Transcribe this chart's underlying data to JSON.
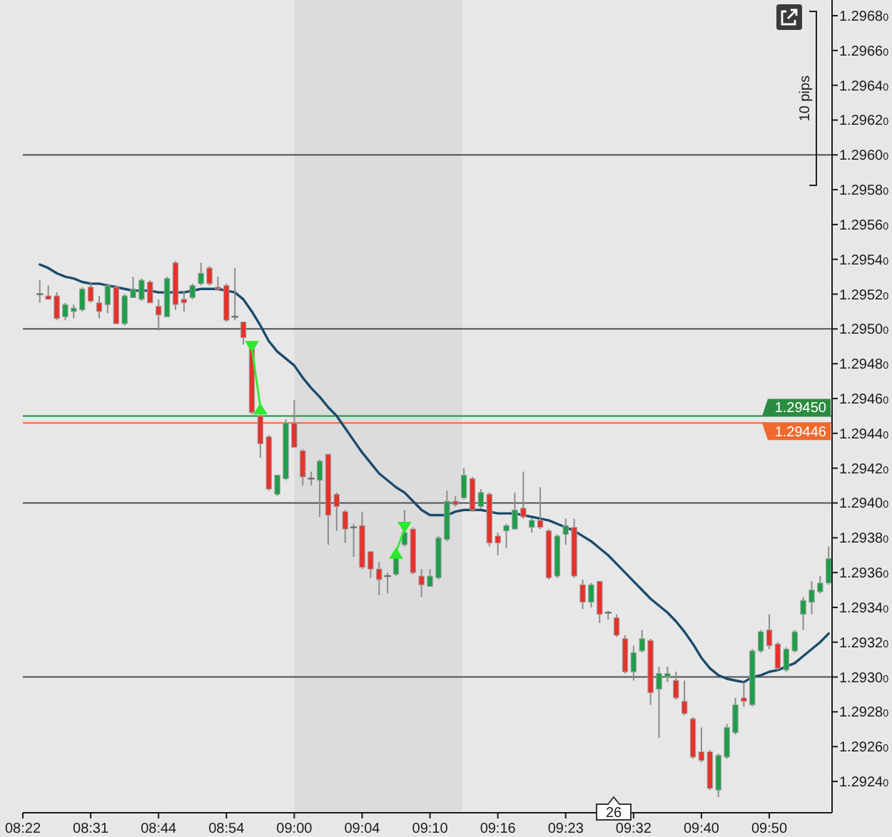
{
  "chart_data": {
    "type": "candlestick",
    "categories": [
      "08:22",
      null,
      null,
      null,
      null,
      null,
      null,
      null,
      "08:31",
      null,
      null,
      null,
      null,
      null,
      null,
      null,
      "08:44",
      null,
      null,
      null,
      null,
      null,
      null,
      null,
      "08:54",
      null,
      null,
      null,
      null,
      null,
      null,
      null,
      "09:00",
      null,
      null,
      null,
      null,
      null,
      null,
      null,
      "09:04",
      null,
      null,
      null,
      null,
      null,
      null,
      null,
      "09:10",
      null,
      null,
      null,
      null,
      null,
      null,
      null,
      "09:16",
      null,
      null,
      null,
      null,
      null,
      null,
      null,
      "09:23",
      null,
      null,
      null,
      null,
      null,
      null,
      null,
      "09:32",
      null,
      null,
      null,
      null,
      null,
      null,
      null,
      "09:40",
      null,
      null,
      null,
      null,
      null,
      null,
      null,
      "09:50",
      null,
      null,
      null,
      null,
      null,
      null,
      null
    ],
    "ohlc": [
      null,
      null,
      [
        1.2952,
        1.29528,
        1.29515,
        1.2952
      ],
      [
        1.29519,
        1.29525,
        1.29517,
        1.29517
      ],
      [
        1.29519,
        1.29521,
        1.29505,
        1.29506
      ],
      [
        1.29507,
        1.29515,
        1.29505,
        1.29514
      ],
      [
        1.2951,
        1.29514,
        1.29506,
        1.29512
      ],
      [
        1.29511,
        1.29524,
        1.2951,
        1.29523
      ],
      [
        1.29524,
        1.29527,
        1.29515,
        1.29516
      ],
      [
        1.29515,
        1.29519,
        1.29506,
        1.2951
      ],
      [
        1.29514,
        1.29526,
        1.29509,
        1.29525
      ],
      [
        1.29524,
        1.29525,
        1.29503,
        1.29503
      ],
      [
        1.29503,
        1.2952,
        1.29502,
        1.29519
      ],
      [
        1.29518,
        1.2953,
        1.29518,
        1.29523
      ],
      [
        1.29517,
        1.29529,
        1.29516,
        1.29528
      ],
      [
        1.29527,
        1.29528,
        1.29515,
        1.29515
      ],
      [
        1.29513,
        1.29517,
        1.29499,
        1.29508
      ],
      [
        1.29507,
        1.2953,
        1.29507,
        1.29529
      ],
      [
        1.29538,
        1.29539,
        1.29511,
        1.29514
      ],
      [
        1.29517,
        1.29522,
        1.2951,
        1.29515
      ],
      [
        1.29518,
        1.29526,
        1.29517,
        1.29525
      ],
      [
        1.29526,
        1.29538,
        1.29525,
        1.29532
      ],
      [
        1.29535,
        1.29536,
        1.29525,
        1.29526
      ],
      [
        1.29524,
        1.2953,
        1.29522,
        1.29523
      ],
      [
        1.29525,
        1.29526,
        1.29504,
        1.29505
      ],
      [
        1.29507,
        1.29535,
        1.29505,
        1.29507
      ],
      [
        1.29504,
        1.29504,
        1.29491,
        1.29495
      ],
      [
        1.2949,
        1.29491,
        1.29451,
        1.29452
      ],
      [
        1.2945,
        1.29453,
        1.29426,
        1.29434
      ],
      [
        1.29438,
        1.29439,
        1.29407,
        1.29408
      ],
      [
        1.29405,
        1.29416,
        1.29404,
        1.29416
      ],
      [
        1.29414,
        1.29448,
        1.29413,
        1.29446
      ],
      [
        1.29446,
        1.29459,
        1.29432,
        1.29432
      ],
      [
        1.2943,
        1.29431,
        1.2941,
        1.29415
      ],
      [
        1.29414,
        1.29418,
        1.2941,
        1.29414
      ],
      [
        1.29413,
        1.29425,
        1.29392,
        1.29424
      ],
      [
        1.29428,
        1.29428,
        1.29376,
        1.29393
      ],
      [
        1.29405,
        1.29406,
        1.29384,
        1.29398
      ],
      [
        1.29395,
        1.29396,
        1.29377,
        1.29385
      ],
      [
        1.29386,
        1.29388,
        1.29369,
        1.29386
      ],
      [
        1.29387,
        1.29395,
        1.29362,
        1.29363
      ],
      [
        1.29372,
        1.29372,
        1.29357,
        1.29362
      ],
      [
        1.29362,
        1.29366,
        1.29347,
        1.29356
      ],
      [
        1.29358,
        1.2936,
        1.29348,
        1.29358
      ],
      [
        1.29359,
        1.2937,
        1.29358,
        1.29369
      ],
      [
        1.29376,
        1.29396,
        1.29375,
        1.29383
      ],
      [
        1.29385,
        1.29386,
        1.29359,
        1.2936
      ],
      [
        1.29358,
        1.29362,
        1.29346,
        1.29353
      ],
      [
        1.29352,
        1.29362,
        1.29352,
        1.29358
      ],
      [
        1.29357,
        1.29381,
        1.29356,
        1.2938
      ],
      [
        1.29379,
        1.29407,
        1.29378,
        1.29401
      ],
      [
        1.29401,
        1.29404,
        1.29398,
        1.29399
      ],
      [
        1.29403,
        1.2942,
        1.29402,
        1.29416
      ],
      [
        1.29414,
        1.29415,
        1.29395,
        1.29396
      ],
      [
        1.29398,
        1.29408,
        1.29397,
        1.29406
      ],
      [
        1.29405,
        1.29406,
        1.29375,
        1.29377
      ],
      [
        1.29381,
        1.29383,
        1.2937,
        1.29377
      ],
      [
        1.29384,
        1.29388,
        1.29374,
        1.29387
      ],
      [
        1.29385,
        1.29406,
        1.29385,
        1.29396
      ],
      [
        1.29397,
        1.29418,
        1.29391,
        1.29392
      ],
      [
        1.29386,
        1.29391,
        1.29383,
        1.2939
      ],
      [
        1.2939,
        1.29409,
        1.29385,
        1.29386
      ],
      [
        1.29384,
        1.29385,
        1.29356,
        1.29357
      ],
      [
        1.29358,
        1.29382,
        1.29357,
        1.29381
      ],
      [
        1.29382,
        1.29391,
        1.29376,
        1.29387
      ],
      [
        1.29386,
        1.29391,
        1.29357,
        1.29358
      ],
      [
        1.29353,
        1.29356,
        1.29339,
        1.29343
      ],
      [
        1.29343,
        1.29354,
        1.2934,
        1.29353
      ],
      [
        1.29355,
        1.29355,
        1.29331,
        1.29336
      ],
      [
        1.29337,
        1.29338,
        1.29333,
        1.29337
      ],
      [
        1.29334,
        1.29336,
        1.29323,
        1.29324
      ],
      [
        1.29322,
        1.29324,
        1.29302,
        1.29303
      ],
      [
        1.29303,
        1.29318,
        1.29298,
        1.29314
      ],
      [
        1.29315,
        1.29327,
        1.29314,
        1.29322
      ],
      [
        1.29321,
        1.29322,
        1.29284,
        1.29291
      ],
      [
        1.29293,
        1.29306,
        1.29265,
        1.29302
      ],
      [
        1.293,
        1.29306,
        1.29297,
        1.29302
      ],
      [
        1.29298,
        1.29303,
        1.29287,
        1.29288
      ],
      [
        1.29286,
        1.29298,
        1.29278,
        1.29279
      ],
      [
        1.29276,
        1.29277,
        1.29253,
        1.29254
      ],
      [
        1.29257,
        1.29271,
        1.29251,
        1.29252
      ],
      [
        1.29257,
        1.29258,
        1.29235,
        1.29236
      ],
      [
        1.29235,
        1.29256,
        1.29231,
        1.29255
      ],
      [
        1.29254,
        1.29273,
        1.29253,
        1.29271
      ],
      [
        1.29268,
        1.29288,
        1.29267,
        1.29284
      ],
      [
        1.29288,
        1.29297,
        1.29283,
        1.29286
      ],
      [
        1.29284,
        1.29316,
        1.29283,
        1.29315
      ],
      [
        1.29315,
        1.29327,
        1.29314,
        1.29326
      ],
      [
        1.29327,
        1.29336,
        1.29316,
        1.29318
      ],
      [
        1.29319,
        1.2932,
        1.29304,
        1.29305
      ],
      [
        1.29304,
        1.29317,
        1.29303,
        1.29316
      ],
      [
        1.29315,
        1.29327,
        1.29314,
        1.29326
      ],
      [
        1.29336,
        1.29346,
        1.29327,
        1.29344
      ],
      [
        1.29343,
        1.29355,
        1.29336,
        1.2935
      ],
      [
        1.29349,
        1.29358,
        1.29348,
        1.29354
      ],
      [
        1.29354,
        1.29375,
        1.29353,
        1.29368
      ]
    ],
    "series": [
      {
        "type": "line",
        "color": "#1b4b6c",
        "values": [
          null,
          null,
          1.29537,
          1.29535,
          1.29532,
          1.2953,
          1.29529,
          1.29527,
          1.29526,
          1.29526,
          1.29525,
          1.29524,
          1.29523,
          1.29522,
          1.29522,
          1.29522,
          1.29521,
          1.29521,
          1.29521,
          1.29521,
          1.29522,
          1.29523,
          1.29523,
          1.29523,
          1.29522,
          1.29521,
          1.29517,
          1.2951,
          1.29502,
          1.29493,
          1.29487,
          1.29483,
          1.29479,
          1.29472,
          1.29466,
          1.29461,
          1.29455,
          1.2945,
          1.29443,
          1.29436,
          1.29429,
          1.29423,
          1.29417,
          1.29413,
          1.29409,
          1.29406,
          1.29401,
          1.29396,
          1.29393,
          1.29393,
          1.29393,
          1.29395,
          1.29396,
          1.29396,
          1.29396,
          1.29395,
          1.29394,
          1.29394,
          1.29394,
          1.29393,
          1.29392,
          1.29391,
          1.2939,
          1.29388,
          1.29386,
          1.29384,
          1.29381,
          1.29378,
          1.29374,
          1.2937,
          1.29365,
          1.2936,
          1.29355,
          1.2935,
          1.29345,
          1.29341,
          1.29337,
          1.29332,
          1.29326,
          1.29319,
          1.29311,
          1.29305,
          1.29301,
          1.29299,
          1.29298,
          1.29297,
          1.293,
          1.29301,
          1.29303,
          1.29304,
          1.29306,
          1.29308,
          1.29312,
          1.29316,
          1.2932,
          1.29325
        ]
      },
      {
        "type": "line",
        "color": "#2ee82e",
        "marker": "triangle",
        "values": [
          null,
          null,
          null,
          null,
          null,
          null,
          null,
          null,
          null,
          null,
          null,
          null,
          null,
          null,
          null,
          null,
          null,
          null,
          null,
          null,
          null,
          null,
          null,
          null,
          null,
          null,
          null,
          1.29489,
          1.29455,
          null,
          null,
          null,
          null,
          null,
          null,
          null,
          null,
          null,
          null,
          null,
          null,
          null,
          null,
          null,
          1.29372,
          1.29385,
          null,
          null,
          null,
          null,
          null,
          null,
          null,
          null,
          null,
          null,
          null,
          null,
          null,
          null,
          null,
          null,
          null,
          null,
          null,
          null,
          null,
          null,
          null,
          null,
          null,
          null,
          null,
          null,
          null,
          null,
          null,
          null,
          null,
          null,
          null,
          null,
          null,
          null,
          null,
          null,
          null,
          null,
          null,
          null,
          null,
          null,
          null,
          null,
          null,
          null
        ]
      }
    ],
    "ylim": [
      1.29222,
      1.29689
    ],
    "yticks": [
      {
        "value": 1.2924,
        "label": "1.29240"
      },
      {
        "value": 1.2926,
        "label": "1.29260"
      },
      {
        "value": 1.2928,
        "label": "1.29280"
      },
      {
        "value": 1.293,
        "label": "1.29300"
      },
      {
        "value": 1.2932,
        "label": "1.29320"
      },
      {
        "value": 1.2934,
        "label": "1.29340"
      },
      {
        "value": 1.2936,
        "label": "1.29360"
      },
      {
        "value": 1.2938,
        "label": "1.29380"
      },
      {
        "value": 1.294,
        "label": "1.29400"
      },
      {
        "value": 1.2942,
        "label": "1.29420"
      },
      {
        "value": 1.2944,
        "label": "1.29440"
      },
      {
        "value": 1.2946,
        "label": "1.29460"
      },
      {
        "value": 1.2948,
        "label": "1.29480"
      },
      {
        "value": 1.295,
        "label": "1.29500"
      },
      {
        "value": 1.2952,
        "label": "1.29520"
      },
      {
        "value": 1.2954,
        "label": "1.29540"
      },
      {
        "value": 1.2956,
        "label": "1.29560"
      },
      {
        "value": 1.2958,
        "label": "1.29580"
      },
      {
        "value": 1.296,
        "label": "1.29600"
      },
      {
        "value": 1.2962,
        "label": "1.29620"
      },
      {
        "value": 1.2964,
        "label": "1.29640"
      },
      {
        "value": 1.2966,
        "label": "1.29660"
      },
      {
        "value": 1.2968,
        "label": "1.29680"
      }
    ],
    "ref_lines": [
      {
        "axis": "y",
        "value": 1.296,
        "color": "#505050"
      },
      {
        "axis": "y",
        "value": 1.295,
        "color": "#505050"
      },
      {
        "axis": "y",
        "value": 1.294,
        "color": "#505050"
      },
      {
        "axis": "y",
        "value": 1.293,
        "color": "#505050"
      },
      {
        "axis": "y",
        "value": 1.2945,
        "label": "1.29450",
        "color": "#2a8c40"
      },
      {
        "axis": "y",
        "value": 1.29446,
        "label": "1.29446",
        "color": "#f2692e"
      }
    ],
    "annotations": [
      "10 pips",
      "26"
    ]
  }
}
